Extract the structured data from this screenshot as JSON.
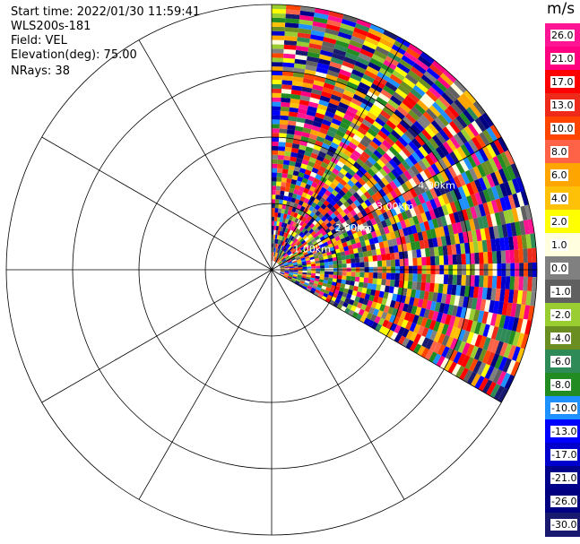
{
  "info": {
    "start_time": "Start time: 2022/01/30 11:59:41",
    "site": "WLS200s-181",
    "field": "Field: VEL",
    "elevation": "Elevation(deg): 75.00",
    "nrays": "NRays: 38"
  },
  "chart_data": {
    "type": "heatmap",
    "projection": "polar-ppi",
    "title": "",
    "sector_deg": {
      "start": 0,
      "end": 120,
      "note": "clockwise from north"
    },
    "max_range_km": 5.7,
    "range_ring_labels": [
      "1.00km",
      "2.00km",
      "3.00km",
      "4.00km"
    ],
    "colorbar": {
      "unit": "m/s",
      "ticks": [
        "26.0",
        "21.0",
        "17.0",
        "13.0",
        "10.0",
        "8.0",
        "6.0",
        "4.0",
        "2.0",
        "1.0",
        "0.0",
        "-1.0",
        "-2.0",
        "-4.0",
        "-6.0",
        "-8.0",
        "-10.0",
        "-13.0",
        "-17.0",
        "-21.0",
        "-26.0",
        "-30.0"
      ],
      "colors": [
        "#ff1493",
        "#ff0080",
        "#ff0000",
        "#ee2a1a",
        "#ff4500",
        "#ff6347",
        "#ffa500",
        "#ffc107",
        "#ffff00",
        "#ffffe0",
        "#808080",
        "#606060",
        "#9acd32",
        "#6b8e23",
        "#2e8b57",
        "#228b22",
        "#1e90ff",
        "#0000ff",
        "#0000cd",
        "#00008b",
        "#000080",
        "#191970"
      ]
    },
    "grid": true
  }
}
